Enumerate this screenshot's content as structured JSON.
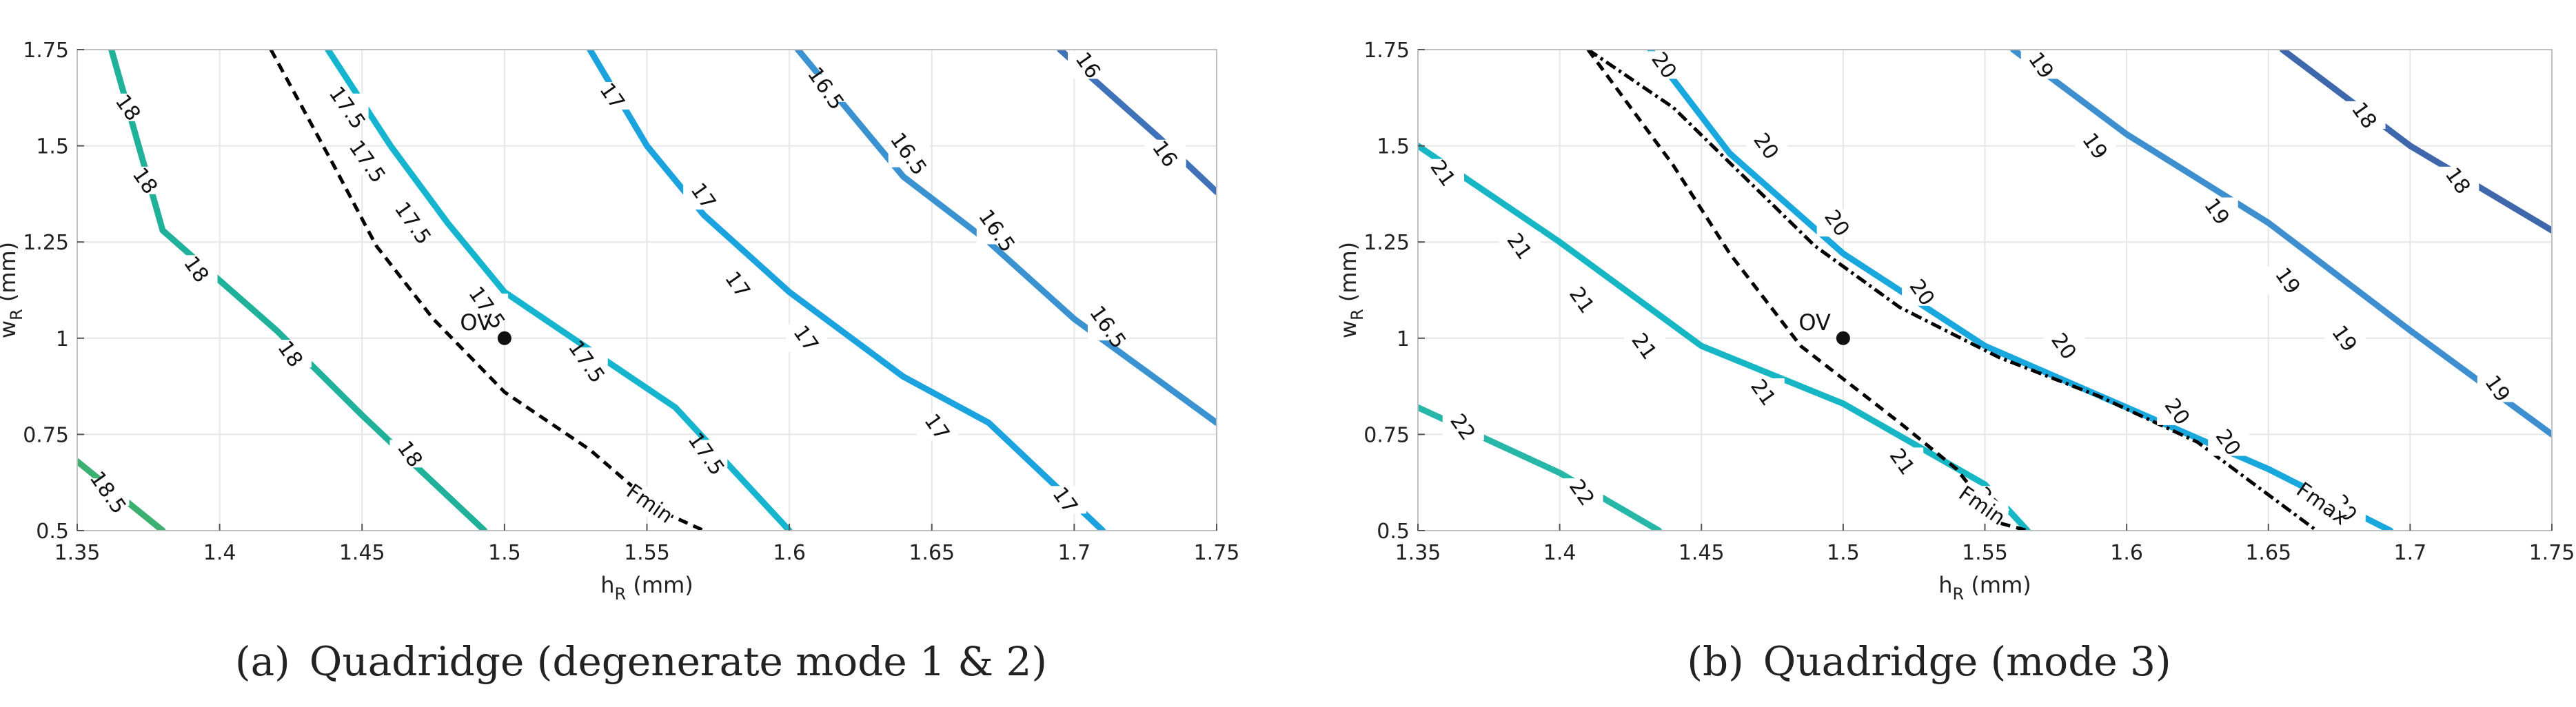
{
  "chart_data": [
    {
      "type": "contour",
      "xlabel_main": "h",
      "xlabel_sub": "R",
      "xlabel_unit": "(mm)",
      "ylabel_main": "w",
      "ylabel_sub": "R",
      "ylabel_unit": "(mm)",
      "xlim": [
        1.35,
        1.75
      ],
      "ylim": [
        0.5,
        1.75
      ],
      "xticks": [
        1.35,
        1.4,
        1.45,
        1.5,
        1.55,
        1.6,
        1.65,
        1.7,
        1.75
      ],
      "yticks": [
        0.5,
        0.75,
        1,
        1.25,
        1.5,
        1.75
      ],
      "xtick_labels": [
        "1.35",
        "1.4",
        "1.45",
        "1.5",
        "1.55",
        "1.6",
        "1.65",
        "1.7",
        "1.75"
      ],
      "ytick_labels": [
        "0.5",
        "0.75",
        "1",
        "1.25",
        "1.5",
        "1.75"
      ],
      "grid": true,
      "contours": [
        {
          "level": "18.5",
          "color": "#3cb070",
          "points": [
            [
              1.35,
              0.68
            ],
            [
              1.38,
              0.5
            ]
          ],
          "labels": [
            [
              1.361,
              0.6
            ]
          ]
        },
        {
          "level": "18",
          "color": "#1fb19a",
          "points": [
            [
              1.362,
              1.75
            ],
            [
              1.38,
              1.28
            ],
            [
              1.4,
              1.15
            ],
            [
              1.42,
              1.02
            ],
            [
              1.45,
              0.8
            ],
            [
              1.47,
              0.66
            ],
            [
              1.493,
              0.5
            ]
          ],
          "labels": [
            [
              1.368,
              1.6
            ],
            [
              1.374,
              1.41
            ],
            [
              1.392,
              1.18
            ],
            [
              1.425,
              0.96
            ],
            [
              1.467,
              0.7
            ]
          ]
        },
        {
          "level": "17.5",
          "color": "#16b5cf",
          "points": [
            [
              1.438,
              1.75
            ],
            [
              1.46,
              1.5
            ],
            [
              1.48,
              1.3
            ],
            [
              1.5,
              1.12
            ],
            [
              1.53,
              0.97
            ],
            [
              1.56,
              0.82
            ],
            [
              1.6,
              0.5
            ]
          ],
          "labels": [
            [
              1.445,
              1.6
            ],
            [
              1.452,
              1.46
            ],
            [
              1.468,
              1.3
            ],
            [
              1.494,
              1.08
            ],
            [
              1.529,
              0.94
            ],
            [
              1.571,
              0.7
            ]
          ]
        },
        {
          "level": "17",
          "color": "#1aa3de",
          "points": [
            [
              1.53,
              1.75
            ],
            [
              1.55,
              1.5
            ],
            [
              1.57,
              1.32
            ],
            [
              1.6,
              1.12
            ],
            [
              1.64,
              0.9
            ],
            [
              1.67,
              0.78
            ],
            [
              1.71,
              0.5
            ]
          ],
          "labels": [
            [
              1.538,
              1.63
            ],
            [
              1.57,
              1.37
            ],
            [
              1.582,
              1.14
            ],
            [
              1.606,
              1.0
            ],
            [
              1.652,
              0.77
            ],
            [
              1.697,
              0.58
            ]
          ]
        },
        {
          "level": "16.5",
          "color": "#3a93d0",
          "points": [
            [
              1.603,
              1.75
            ],
            [
              1.64,
              1.42
            ],
            [
              1.67,
              1.25
            ],
            [
              1.7,
              1.05
            ],
            [
              1.75,
              0.78
            ]
          ],
          "labels": [
            [
              1.613,
              1.65
            ],
            [
              1.642,
              1.48
            ],
            [
              1.673,
              1.28
            ],
            [
              1.712,
              1.03
            ]
          ]
        },
        {
          "level": "16",
          "color": "#3f72b8",
          "points": [
            [
              1.695,
              1.75
            ],
            [
              1.73,
              1.52
            ],
            [
              1.75,
              1.38
            ]
          ],
          "labels": [
            [
              1.705,
              1.71
            ],
            [
              1.732,
              1.48
            ]
          ]
        }
      ],
      "curves": [
        {
          "name": "Fmin",
          "style": "dashed",
          "points": [
            [
              1.418,
              1.75
            ],
            [
              1.44,
              1.45
            ],
            [
              1.455,
              1.24
            ],
            [
              1.475,
              1.05
            ],
            [
              1.5,
              0.86
            ],
            [
              1.53,
              0.71
            ],
            [
              1.555,
              0.55
            ],
            [
              1.57,
              0.5
            ]
          ],
          "label_at": [
            1.551,
            0.57
          ]
        }
      ],
      "marker": {
        "label": "OV",
        "x": 1.5,
        "y": 1.0
      }
    },
    {
      "type": "contour",
      "xlabel_main": "h",
      "xlabel_sub": "R",
      "xlabel_unit": "(mm)",
      "ylabel_main": "w",
      "ylabel_sub": "R",
      "ylabel_unit": "(mm)",
      "xlim": [
        1.35,
        1.75
      ],
      "ylim": [
        0.5,
        1.75
      ],
      "xticks": [
        1.35,
        1.4,
        1.45,
        1.5,
        1.55,
        1.6,
        1.65,
        1.7,
        1.75
      ],
      "yticks": [
        0.5,
        0.75,
        1,
        1.25,
        1.5,
        1.75
      ],
      "xtick_labels": [
        "1.35",
        "1.4",
        "1.45",
        "1.5",
        "1.55",
        "1.6",
        "1.65",
        "1.7",
        "1.75"
      ],
      "ytick_labels": [
        "0.5",
        "0.75",
        "1",
        "1.25",
        "1.5",
        "1.75"
      ],
      "grid": true,
      "contours": [
        {
          "level": "22",
          "color": "#26b7a8",
          "points": [
            [
              1.35,
              0.82
            ],
            [
              1.4,
              0.65
            ],
            [
              1.435,
              0.5
            ]
          ],
          "labels": [
            [
              1.366,
              0.77
            ],
            [
              1.408,
              0.6
            ]
          ]
        },
        {
          "level": "21",
          "color": "#17b6c4",
          "points": [
            [
              1.35,
              1.5
            ],
            [
              1.4,
              1.25
            ],
            [
              1.45,
              0.98
            ],
            [
              1.5,
              0.83
            ],
            [
              1.55,
              0.62
            ],
            [
              1.565,
              0.5
            ]
          ],
          "labels": [
            [
              1.359,
              1.43
            ],
            [
              1.386,
              1.24
            ],
            [
              1.408,
              1.1
            ],
            [
              1.43,
              0.98
            ],
            [
              1.472,
              0.86
            ],
            [
              1.521,
              0.68
            ],
            [
              1.551,
              0.58
            ]
          ]
        },
        {
          "level": "20",
          "color": "#18a8dd",
          "points": [
            [
              1.432,
              1.75
            ],
            [
              1.46,
              1.48
            ],
            [
              1.5,
              1.22
            ],
            [
              1.55,
              0.98
            ],
            [
              1.6,
              0.82
            ],
            [
              1.65,
              0.66
            ],
            [
              1.693,
              0.5
            ]
          ],
          "labels": [
            [
              1.437,
              1.71
            ],
            [
              1.473,
              1.5
            ],
            [
              1.498,
              1.3
            ],
            [
              1.528,
              1.12
            ],
            [
              1.578,
              0.98
            ],
            [
              1.618,
              0.81
            ],
            [
              1.636,
              0.73
            ],
            [
              1.677,
              0.56
            ]
          ]
        },
        {
          "level": "19",
          "color": "#3d8fd0",
          "points": [
            [
              1.56,
              1.75
            ],
            [
              1.6,
              1.53
            ],
            [
              1.65,
              1.3
            ],
            [
              1.7,
              1.02
            ],
            [
              1.75,
              0.75
            ]
          ],
          "labels": [
            [
              1.57,
              1.71
            ],
            [
              1.589,
              1.5
            ],
            [
              1.632,
              1.33
            ],
            [
              1.657,
              1.15
            ],
            [
              1.677,
              1.0
            ],
            [
              1.731,
              0.87
            ]
          ]
        },
        {
          "level": "18",
          "color": "#3f67ab",
          "points": [
            [
              1.655,
              1.75
            ],
            [
              1.7,
              1.5
            ],
            [
              1.75,
              1.28
            ]
          ],
          "labels": [
            [
              1.684,
              1.58
            ],
            [
              1.717,
              1.41
            ]
          ]
        }
      ],
      "curves": [
        {
          "name": "Fmin",
          "style": "dashed",
          "points": [
            [
              1.41,
              1.75
            ],
            [
              1.44,
              1.45
            ],
            [
              1.46,
              1.22
            ],
            [
              1.485,
              0.98
            ],
            [
              1.52,
              0.78
            ],
            [
              1.54,
              0.66
            ],
            [
              1.555,
              0.52
            ],
            [
              1.565,
              0.5
            ]
          ],
          "label_at": [
            1.549,
            0.565
          ]
        },
        {
          "name": "Fmax",
          "style": "dashdot",
          "points": [
            [
              1.41,
              1.75
            ],
            [
              1.44,
              1.6
            ],
            [
              1.49,
              1.24
            ],
            [
              1.52,
              1.08
            ],
            [
              1.555,
              0.95
            ],
            [
              1.59,
              0.85
            ],
            [
              1.625,
              0.73
            ],
            [
              1.667,
              0.5
            ]
          ],
          "label_at": [
            1.669,
            0.57
          ]
        }
      ],
      "marker": {
        "label": "OV",
        "x": 1.5,
        "y": 1.0
      }
    }
  ],
  "captions": [
    {
      "tag": "(a)",
      "text": "Quadridge (degenerate mode 1 & 2)"
    },
    {
      "tag": "(b)",
      "text": "Quadridge (mode 3)"
    }
  ]
}
